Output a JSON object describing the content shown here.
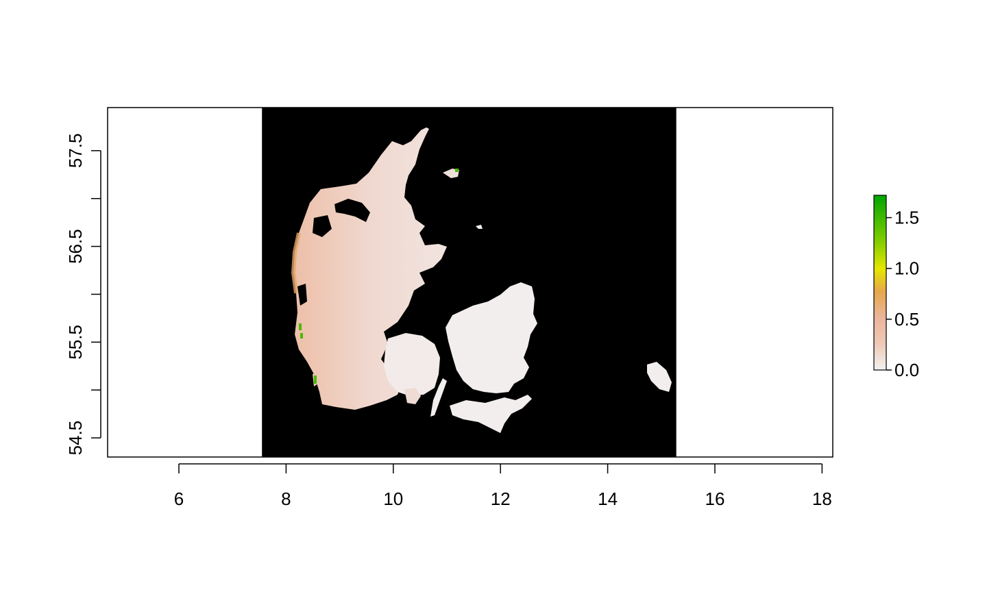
{
  "chart_data": {
    "type": "heatmap",
    "title": "",
    "xlabel": "",
    "ylabel": "",
    "xlim": [
      4.67,
      18.2
    ],
    "ylim": [
      54.3,
      57.95
    ],
    "x_ticks": [
      "6",
      "8",
      "10",
      "12",
      "14",
      "16",
      "18"
    ],
    "y_ticks": [
      "54.5",
      "55.5",
      "56.5",
      "57.5"
    ],
    "y_minor_ticks": [
      55.0,
      56.0,
      57.0
    ],
    "raster_extent": {
      "x": [
        7.55,
        15.28
      ],
      "y": [
        54.3,
        57.95
      ]
    },
    "nodata_color": "#000000",
    "grid": false,
    "legend": {
      "position": "right",
      "ticks": [
        "0.0",
        "0.5",
        "1.0",
        "1.5"
      ],
      "range": [
        0,
        1.72
      ],
      "colors": [
        "#f2f2f2",
        "#ebb59b",
        "#e6a84a",
        "#e6e600",
        "#8bd000",
        "#00a600"
      ]
    }
  }
}
